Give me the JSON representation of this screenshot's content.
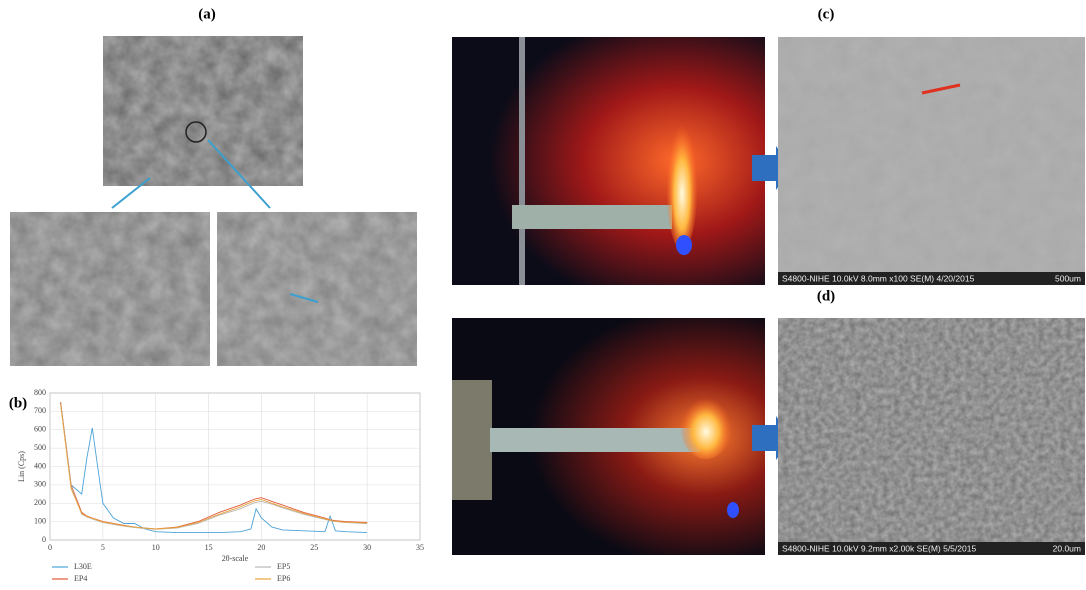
{
  "panels": {
    "a": {
      "label": "(a)"
    },
    "b": {
      "label": "(b)"
    },
    "c": {
      "label": "(c)",
      "sem_caption": "S4800-NIHE 10.0kV 8.0mm x100 SE(M) 4/20/2015",
      "scale_bar": "500um"
    },
    "d": {
      "label": "(d)",
      "sem_caption": "S4800-NIHE 10.0kV 9.2mm x2.00k SE(M) 5/5/2015",
      "scale_bar": "20.0um"
    }
  },
  "chart_data": {
    "type": "line",
    "xlabel": "2θ-scale",
    "ylabel": "Lin (Cps)",
    "x": [
      1,
      2,
      3,
      3.5,
      4,
      4.5,
      5,
      6,
      7,
      8,
      9,
      10,
      12,
      14,
      16,
      18,
      19,
      19.5,
      20,
      21,
      22,
      24,
      26,
      26.5,
      27,
      28,
      30
    ],
    "series": [
      {
        "name": "L30E",
        "color": "#4aa3d8",
        "values": [
          750,
          300,
          250,
          450,
          610,
          400,
          200,
          120,
          90,
          90,
          60,
          45,
          40,
          40,
          40,
          45,
          60,
          170,
          120,
          70,
          55,
          50,
          45,
          130,
          50,
          45,
          40
        ]
      },
      {
        "name": "EP4",
        "color": "#e05a3a",
        "values": [
          750,
          300,
          150,
          130,
          120,
          110,
          100,
          90,
          80,
          70,
          65,
          60,
          70,
          100,
          150,
          190,
          215,
          225,
          230,
          210,
          190,
          150,
          120,
          110,
          105,
          100,
          95
        ]
      },
      {
        "name": "EP5",
        "color": "#b8b8b8",
        "values": [
          740,
          290,
          140,
          125,
          115,
          105,
          95,
          85,
          75,
          68,
          62,
          58,
          65,
          90,
          135,
          170,
          195,
          205,
          210,
          195,
          175,
          140,
          112,
          105,
          100,
          95,
          90
        ]
      },
      {
        "name": "EP6",
        "color": "#e8a33a",
        "values": [
          740,
          280,
          145,
          128,
          118,
          108,
          98,
          88,
          78,
          70,
          64,
          60,
          68,
          95,
          140,
          180,
          205,
          215,
          220,
          200,
          180,
          145,
          115,
          108,
          102,
          97,
          92
        ]
      }
    ],
    "xlim": [
      0,
      35
    ],
    "xticks": [
      0,
      5,
      10,
      15,
      20,
      25,
      30,
      35
    ],
    "ylim": [
      0,
      800
    ],
    "yticks": [
      0,
      100,
      200,
      300,
      400,
      500,
      600,
      700,
      800
    ],
    "grid": true,
    "legend": "bottom"
  }
}
